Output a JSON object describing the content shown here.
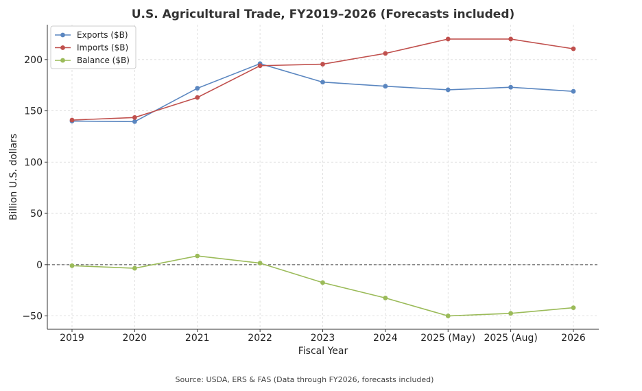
{
  "chart_data": {
    "type": "line",
    "title": "U.S. Agricultural Trade, FY2019–2026 (Forecasts included)",
    "xlabel": "Fiscal Year",
    "ylabel": "Billion U.S. dollars",
    "categories": [
      "2019",
      "2020",
      "2021",
      "2022",
      "2023",
      "2024",
      "2025 (May)",
      "2025 (Aug)",
      "2026"
    ],
    "ylim": [
      -63,
      234
    ],
    "yticks": [
      "−50",
      "0",
      "50",
      "100",
      "150",
      "200"
    ],
    "ytick_values": [
      -50,
      0,
      50,
      100,
      150,
      200
    ],
    "grid": true,
    "legend_position": "top-left",
    "zero_line": true,
    "series": [
      {
        "name": "Exports ($B)",
        "color": "#5a86c0",
        "values": [
          140,
          139.5,
          172,
          196,
          178,
          174,
          170.5,
          173,
          169
        ]
      },
      {
        "name": "Imports ($B)",
        "color": "#c0504d",
        "values": [
          141,
          143.5,
          163,
          194,
          195.5,
          206,
          220,
          220,
          210.5
        ]
      },
      {
        "name": "Balance ($B)",
        "color": "#9bbb59",
        "values": [
          -1,
          -3.5,
          8.5,
          1.5,
          -17.5,
          -32.5,
          -50,
          -47.5,
          -42
        ]
      }
    ],
    "source": "Source: USDA, ERS & FAS (Data through FY2026, forecasts included)"
  }
}
